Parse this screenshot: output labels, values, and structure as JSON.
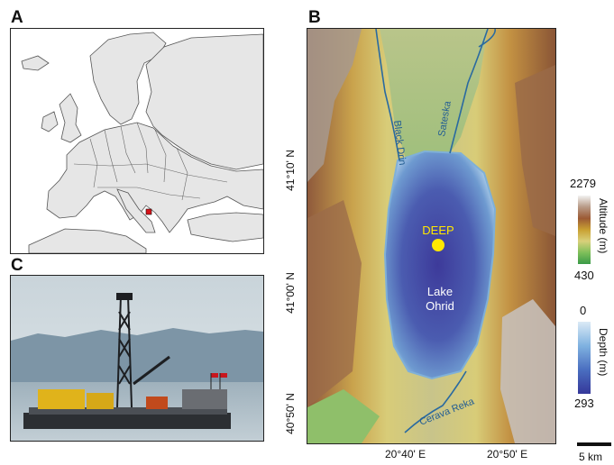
{
  "panels": {
    "a": {
      "letter": "A"
    },
    "b": {
      "letter": "B"
    },
    "c": {
      "letter": "C"
    }
  },
  "map_b": {
    "labels": {
      "black_drin": "Black Drin",
      "sateska": "Sateska",
      "deep": "DEEP",
      "lake_line1": "Lake",
      "lake_line2": "Ohrid",
      "cerava_reka": "Cerava Reka"
    },
    "lat_ticks": [
      "41°10' N",
      "41°00' N",
      "40°50' N"
    ],
    "lon_ticks": [
      "20°40' E",
      "20°50' E"
    ],
    "altitude_legend": {
      "max": "2279",
      "min": "430",
      "label": "Altitude (m)"
    },
    "depth_legend": {
      "min": "0",
      "max": "293",
      "label": "Depth (m)"
    },
    "scale_bar": "5 km",
    "colors": {
      "deep_marker": "#ffe800",
      "lake_deep": "#3a3f9e",
      "lake_shallow": "#9fc3e4",
      "river": "#2a6aa0"
    }
  }
}
